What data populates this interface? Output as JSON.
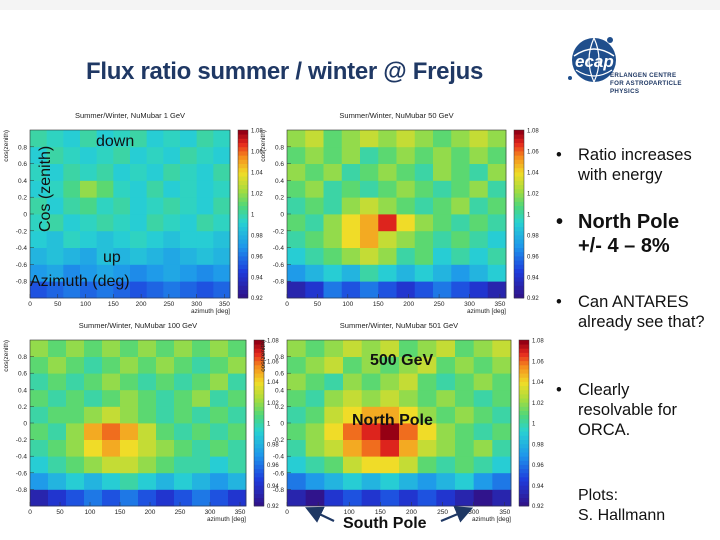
{
  "slide": {
    "title": "Flux ratio summer / winter @ Frejus",
    "logo_mark": "ecap",
    "logo_lines": [
      "ERLANGEN CENTRE",
      "FOR ASTROPARTICLE",
      "PHYSICS"
    ]
  },
  "bullets": [
    {
      "text": "Ratio increases with energy",
      "emphasis": false
    },
    {
      "text": "North Pole +/- 4 – 8%",
      "emphasis": true
    },
    {
      "text": "Can ANTARES already see that?",
      "emphasis": false
    },
    {
      "text": "Clearly resolvable for ORCA.",
      "emphasis": false
    }
  ],
  "credit": {
    "line1": "Plots:",
    "line2": "S. Hallmann"
  },
  "annotations": {
    "panel1_down": "down",
    "panel1_cos": "Cos (zenith)",
    "panel1_up": "up",
    "panel1_azimuth": "Azimuth (deg)",
    "panel4_energy": "500 GeV",
    "panel4_north": "North Pole",
    "panel4_south": "South Pole"
  },
  "colors": {
    "title": "#1f3864",
    "arrow": "#1f3864"
  },
  "chart_data": [
    {
      "type": "heatmap",
      "title": "Summer/Winter, NuMubar 1 GeV",
      "xlabel": "azimuth [deg]",
      "ylabel": "cos(zenith)",
      "x_ticks": [
        "0",
        "50",
        "100",
        "150",
        "200",
        "250",
        "300",
        "350"
      ],
      "y_ticks": [
        "-0.8",
        "-0.6",
        "-0.4",
        "-0.2",
        "0",
        "0.2",
        "0.4",
        "0.6",
        "0.8"
      ],
      "xlim": [
        0,
        360
      ],
      "ylim": [
        -1,
        1
      ],
      "colorbar_ticks": [
        "1.08",
        "1.06",
        "1.04",
        "1.02",
        "1",
        "0.98",
        "0.96",
        "0.94",
        "0.92"
      ],
      "zlim": [
        0.92,
        1.08
      ],
      "z": [
        [
          0.95,
          0.955,
          0.96,
          0.955,
          0.96,
          0.955,
          0.95,
          0.955,
          0.96,
          0.955,
          0.95,
          0.955
        ],
        [
          0.97,
          0.975,
          0.965,
          0.97,
          0.975,
          0.97,
          0.965,
          0.97,
          0.975,
          0.97,
          0.965,
          0.97
        ],
        [
          0.98,
          0.985,
          0.98,
          0.975,
          0.985,
          0.98,
          0.985,
          0.98,
          0.975,
          0.98,
          0.985,
          0.98
        ],
        [
          0.99,
          0.985,
          0.995,
          0.99,
          0.985,
          0.99,
          0.995,
          0.99,
          0.985,
          0.99,
          0.99,
          0.985
        ],
        [
          0.995,
          1.0,
          0.99,
          0.995,
          1.0,
          0.995,
          0.99,
          1.0,
          0.995,
          0.99,
          1.0,
          0.995
        ],
        [
          1.0,
          0.99,
          1.0,
          1.005,
          0.995,
          1.0,
          0.99,
          0.995,
          1.0,
          0.995,
          0.99,
          1.0
        ],
        [
          0.99,
          0.995,
          1.005,
          1.02,
          1.01,
          0.995,
          0.99,
          1.0,
          0.99,
          0.995,
          0.99,
          0.995
        ],
        [
          0.995,
          0.99,
          1.0,
          0.995,
          1.0,
          0.99,
          0.995,
          0.99,
          1.0,
          0.995,
          0.99,
          1.0
        ],
        [
          0.99,
          1.0,
          0.995,
          0.99,
          0.995,
          1.0,
          0.99,
          0.995,
          0.99,
          1.0,
          0.995,
          0.99
        ],
        [
          1.0,
          0.995,
          0.99,
          1.0,
          0.99,
          0.995,
          1.0,
          0.99,
          0.995,
          0.99,
          1.0,
          0.995
        ]
      ]
    },
    {
      "type": "heatmap",
      "title": "Summer/Winter, NuMubar 50 GeV",
      "xlabel": "azimuth [deg]",
      "ylabel": "cos(zenith)",
      "x_ticks": [
        "0",
        "50",
        "100",
        "150",
        "200",
        "250",
        "300",
        "350"
      ],
      "y_ticks": [
        "-0.8",
        "-0.6",
        "-0.4",
        "-0.2",
        "0",
        "0.2",
        "0.4",
        "0.6",
        "0.8"
      ],
      "xlim": [
        0,
        360
      ],
      "ylim": [
        -1,
        1
      ],
      "colorbar_ticks": [
        "1.08",
        "1.06",
        "1.04",
        "1.02",
        "1",
        "0.98",
        "0.96",
        "0.94",
        "0.92"
      ],
      "zlim": [
        0.92,
        1.08
      ],
      "z": [
        [
          0.93,
          0.94,
          0.96,
          0.95,
          0.96,
          0.95,
          0.94,
          0.95,
          0.96,
          0.95,
          0.94,
          0.93
        ],
        [
          0.97,
          0.98,
          0.99,
          0.98,
          1.0,
          0.99,
          0.98,
          0.99,
          0.98,
          0.97,
          0.98,
          0.99
        ],
        [
          0.99,
          1.0,
          1.01,
          1.02,
          1.03,
          1.02,
          1.0,
          1.01,
          0.99,
          1.0,
          0.99,
          1.0
        ],
        [
          1.0,
          1.01,
          1.02,
          1.04,
          1.05,
          1.03,
          1.02,
          1.01,
          1.0,
          1.01,
          1.0,
          0.99
        ],
        [
          1.01,
          1.0,
          1.02,
          1.04,
          1.05,
          1.07,
          1.04,
          1.02,
          1.01,
          1.0,
          1.01,
          1.0
        ],
        [
          1.0,
          1.01,
          1.0,
          1.02,
          1.03,
          1.02,
          1.01,
          1.0,
          1.01,
          1.02,
          1.0,
          1.01
        ],
        [
          1.01,
          1.02,
          1.0,
          1.01,
          1.0,
          1.01,
          1.02,
          1.01,
          1.0,
          1.01,
          1.02,
          1.0
        ],
        [
          1.02,
          1.01,
          1.02,
          1.0,
          1.01,
          1.02,
          1.01,
          1.0,
          1.02,
          1.01,
          1.0,
          1.02
        ],
        [
          1.01,
          1.02,
          1.01,
          1.02,
          1.0,
          1.01,
          1.02,
          1.01,
          1.02,
          1.01,
          1.02,
          1.01
        ],
        [
          1.02,
          1.03,
          1.01,
          1.02,
          1.03,
          1.02,
          1.03,
          1.02,
          1.01,
          1.02,
          1.03,
          1.02
        ]
      ]
    },
    {
      "type": "heatmap",
      "title": "Summer/Winter, NuMubar 100 GeV",
      "xlabel": "azimuth [deg]",
      "ylabel": "cos(zenith)",
      "x_ticks": [
        "0",
        "50",
        "100",
        "150",
        "200",
        "250",
        "300",
        "350"
      ],
      "y_ticks": [
        "-0.8",
        "-0.6",
        "-0.4",
        "-0.2",
        "0",
        "0.2",
        "0.4",
        "0.6",
        "0.8"
      ],
      "xlim": [
        0,
        360
      ],
      "ylim": [
        -1,
        1
      ],
      "colorbar_ticks": [
        "1.08",
        "1.06",
        "1.04",
        "1.02",
        "1",
        "0.98",
        "0.96",
        "0.94",
        "0.92"
      ],
      "zlim": [
        0.92,
        1.08
      ],
      "z": [
        [
          0.93,
          0.94,
          0.95,
          0.96,
          0.95,
          0.96,
          0.95,
          0.94,
          0.95,
          0.96,
          0.95,
          0.94
        ],
        [
          0.97,
          0.98,
          0.99,
          0.98,
          0.99,
          1.0,
          0.99,
          0.98,
          0.99,
          0.98,
          0.97,
          0.98
        ],
        [
          0.99,
          1.0,
          1.01,
          1.02,
          1.03,
          1.03,
          1.02,
          1.01,
          1.0,
          1.0,
          0.99,
          1.0
        ],
        [
          1.0,
          1.01,
          1.02,
          1.04,
          1.05,
          1.04,
          1.03,
          1.02,
          1.01,
          1.0,
          1.01,
          1.0
        ],
        [
          1.01,
          1.0,
          1.02,
          1.05,
          1.06,
          1.05,
          1.03,
          1.01,
          1.0,
          1.01,
          1.0,
          1.01
        ],
        [
          1.0,
          1.01,
          1.01,
          1.02,
          1.03,
          1.02,
          1.01,
          1.0,
          1.01,
          1.0,
          1.01,
          1.0
        ],
        [
          1.01,
          1.0,
          1.01,
          1.0,
          1.01,
          1.02,
          1.01,
          1.0,
          1.01,
          1.02,
          1.0,
          1.01
        ],
        [
          1.0,
          1.01,
          1.0,
          1.01,
          1.02,
          1.01,
          1.0,
          1.01,
          1.0,
          1.01,
          1.02,
          1.0
        ],
        [
          1.01,
          1.02,
          1.01,
          1.0,
          1.01,
          1.02,
          1.01,
          1.02,
          1.01,
          1.0,
          1.01,
          1.02
        ],
        [
          1.02,
          1.01,
          1.02,
          1.01,
          1.02,
          1.01,
          1.02,
          1.01,
          1.02,
          1.01,
          1.02,
          1.01
        ]
      ]
    },
    {
      "type": "heatmap",
      "title": "Summer/Winter, NuMubar 501 GeV",
      "xlabel": "azimuth [deg]",
      "ylabel": "cos(zenith)",
      "x_ticks": [
        "0",
        "50",
        "100",
        "150",
        "200",
        "250",
        "300",
        "350"
      ],
      "y_ticks": [
        "-0.8",
        "-0.6",
        "-0.4",
        "-0.2",
        "0",
        "0.2",
        "0.4",
        "0.6",
        "0.8"
      ],
      "xlim": [
        0,
        360
      ],
      "ylim": [
        -1,
        1
      ],
      "colorbar_ticks": [
        "1.08",
        "1.06",
        "1.04",
        "1.02",
        "1",
        "0.98",
        "0.96",
        "0.94",
        "0.92"
      ],
      "zlim": [
        0.92,
        1.08
      ],
      "z": [
        [
          0.93,
          0.92,
          0.94,
          0.95,
          0.94,
          0.95,
          0.94,
          0.95,
          0.94,
          0.93,
          0.92,
          0.93
        ],
        [
          0.96,
          0.97,
          0.98,
          0.99,
          0.98,
          0.99,
          0.98,
          0.97,
          0.98,
          0.99,
          0.97,
          0.96
        ],
        [
          0.99,
          1.0,
          1.01,
          1.03,
          1.04,
          1.04,
          1.03,
          1.01,
          1.0,
          1.01,
          1.0,
          0.99
        ],
        [
          1.0,
          1.02,
          1.03,
          1.05,
          1.06,
          1.07,
          1.05,
          1.03,
          1.02,
          1.01,
          1.02,
          1.0
        ],
        [
          1.01,
          1.02,
          1.04,
          1.06,
          1.07,
          1.08,
          1.06,
          1.04,
          1.02,
          1.01,
          1.0,
          1.01
        ],
        [
          1.0,
          1.01,
          1.03,
          1.04,
          1.05,
          1.05,
          1.04,
          1.02,
          1.01,
          1.02,
          1.01,
          1.0
        ],
        [
          1.01,
          1.0,
          1.02,
          1.03,
          1.02,
          1.03,
          1.02,
          1.01,
          1.02,
          1.01,
          1.0,
          1.01
        ],
        [
          1.02,
          1.01,
          1.0,
          1.02,
          1.01,
          1.02,
          1.03,
          1.01,
          1.0,
          1.01,
          1.02,
          1.01
        ],
        [
          1.01,
          1.02,
          1.03,
          1.01,
          1.02,
          1.01,
          1.02,
          1.03,
          1.01,
          1.02,
          1.01,
          1.02
        ],
        [
          1.02,
          1.01,
          1.02,
          1.03,
          1.02,
          1.03,
          1.01,
          1.02,
          1.03,
          1.01,
          1.02,
          1.03
        ]
      ]
    }
  ]
}
